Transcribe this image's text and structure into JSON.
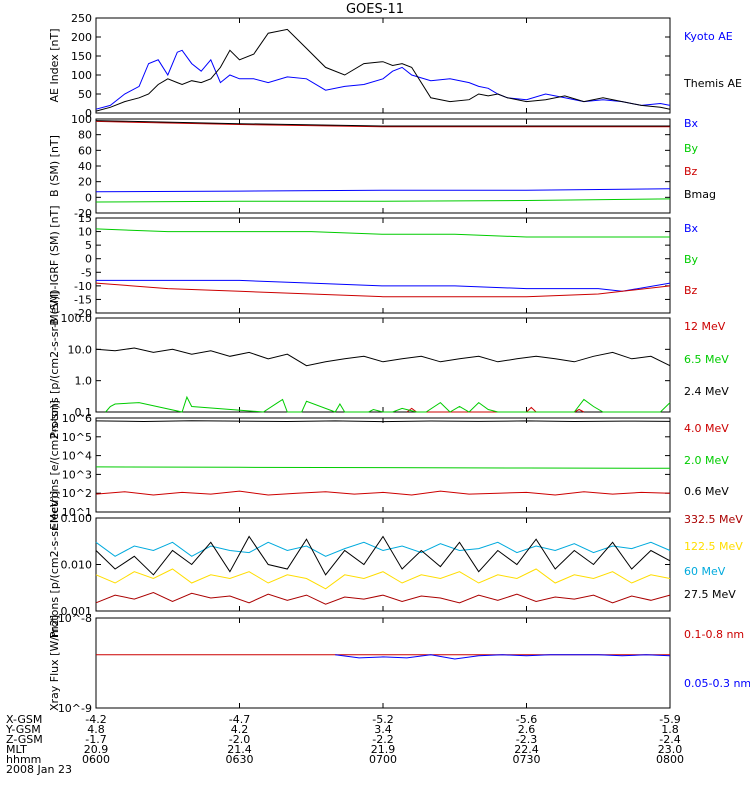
{
  "title": "GOES-11",
  "colors": {
    "black": "#000000",
    "blue": "#0000ff",
    "green": "#00cc00",
    "red": "#cc0000",
    "darkred": "#aa0000",
    "yellow": "#ffdd00",
    "cyan": "#00aadd"
  },
  "chart_data": [
    {
      "type": "line",
      "ylabel": "AE Index [nT]",
      "ylim": [
        0,
        250
      ],
      "yscale": "linear",
      "yticks": [
        "0",
        "50",
        "100",
        "150",
        "200",
        "250"
      ],
      "legend": [
        "Kyoto AE",
        "Themis AE"
      ],
      "series": [
        {
          "name": "Kyoto AE",
          "color": "blue",
          "x": [
            0,
            3,
            6,
            9,
            11,
            13,
            15,
            17,
            18,
            20,
            22,
            24,
            26,
            28,
            30,
            33,
            36,
            40,
            44,
            48,
            52,
            56,
            60,
            62,
            64,
            66,
            70,
            74,
            78,
            80,
            82,
            84,
            86,
            90,
            94,
            98,
            102,
            106,
            110,
            114,
            118,
            120
          ],
          "values": [
            10,
            20,
            50,
            70,
            130,
            140,
            100,
            160,
            165,
            130,
            110,
            140,
            80,
            100,
            90,
            90,
            80,
            95,
            90,
            60,
            70,
            75,
            90,
            110,
            120,
            100,
            85,
            90,
            80,
            70,
            65,
            50,
            40,
            35,
            50,
            40,
            30,
            35,
            30,
            20,
            25,
            20
          ]
        },
        {
          "name": "Themis AE",
          "color": "black",
          "x": [
            0,
            3,
            6,
            9,
            11,
            13,
            15,
            17,
            18,
            20,
            22,
            24,
            26,
            28,
            30,
            33,
            36,
            40,
            44,
            48,
            52,
            56,
            60,
            62,
            64,
            66,
            70,
            74,
            78,
            80,
            82,
            84,
            86,
            90,
            94,
            98,
            102,
            106,
            110,
            114,
            118,
            120
          ],
          "values": [
            5,
            15,
            30,
            40,
            50,
            75,
            90,
            80,
            75,
            85,
            80,
            90,
            120,
            165,
            140,
            155,
            210,
            220,
            170,
            120,
            100,
            130,
            135,
            125,
            130,
            120,
            40,
            30,
            35,
            50,
            45,
            50,
            40,
            30,
            35,
            45,
            30,
            40,
            30,
            20,
            15,
            10
          ]
        }
      ]
    },
    {
      "type": "line",
      "ylabel": "B (SM) [nT]",
      "ylim": [
        -20,
        100
      ],
      "yscale": "linear",
      "yticks": [
        "-20",
        "0",
        "20",
        "40",
        "60",
        "80",
        "100"
      ],
      "legend": [
        "Bx",
        "By",
        "Bz",
        "Bmag"
      ],
      "series": [
        {
          "name": "Bx",
          "color": "blue",
          "x": [
            0,
            30,
            60,
            90,
            120
          ],
          "values": [
            7,
            8,
            9,
            9,
            11
          ]
        },
        {
          "name": "By",
          "color": "green",
          "x": [
            0,
            30,
            60,
            90,
            120
          ],
          "values": [
            -6,
            -5,
            -5,
            -4,
            -2
          ]
        },
        {
          "name": "Bz",
          "color": "red",
          "x": [
            0,
            30,
            60,
            90,
            120
          ],
          "values": [
            97,
            93,
            90,
            90,
            90
          ]
        },
        {
          "name": "Bmag",
          "color": "black",
          "x": [
            0,
            30,
            60,
            90,
            120
          ],
          "values": [
            98,
            94,
            91,
            91,
            91
          ]
        }
      ]
    },
    {
      "type": "line",
      "ylabel": "B (SM)-IGRF (SM) [nT]",
      "ylim": [
        -20,
        15
      ],
      "yscale": "linear",
      "yticks": [
        "-20",
        "-15",
        "-10",
        "-5",
        "0",
        "5",
        "10",
        "15"
      ],
      "legend": [
        "Bx",
        "By",
        "Bz"
      ],
      "series": [
        {
          "name": "Bx",
          "color": "blue",
          "x": [
            0,
            15,
            30,
            45,
            60,
            75,
            90,
            105,
            110,
            120
          ],
          "values": [
            -8,
            -8,
            -8,
            -9,
            -10,
            -10,
            -11,
            -11,
            -12,
            -9
          ]
        },
        {
          "name": "By",
          "color": "green",
          "x": [
            0,
            15,
            30,
            45,
            60,
            75,
            90,
            105,
            120
          ],
          "values": [
            11,
            10,
            10,
            10,
            9,
            9,
            8,
            8,
            8
          ]
        },
        {
          "name": "Bz",
          "color": "red",
          "x": [
            0,
            15,
            30,
            45,
            60,
            75,
            90,
            105,
            110,
            120
          ],
          "values": [
            -9,
            -11,
            -12,
            -13,
            -14,
            -14,
            -14,
            -13,
            -12,
            -10
          ]
        }
      ]
    },
    {
      "type": "line",
      "ylabel": "Protons [p/(cm2-s-sr-MeV)]",
      "ylim": [
        0.1,
        100
      ],
      "yscale": "log",
      "yticks": [
        "0.1",
        "1.0",
        "10.0",
        "100.0"
      ],
      "legend": [
        "12 MeV",
        "6.5 MeV",
        "2.4 MeV"
      ],
      "series": [
        {
          "name": "12 MeV",
          "color": "red",
          "x": [
            65,
            66,
            67,
            90,
            91,
            92,
            100,
            101,
            102
          ],
          "values": [
            0.1,
            0.13,
            0.1,
            0.1,
            0.14,
            0.1,
            0.1,
            0.12,
            0.1
          ]
        },
        {
          "name": "6.5 MeV",
          "color": "green",
          "x": [
            2,
            3,
            4,
            9,
            18,
            19,
            20,
            35,
            38,
            39,
            40,
            43,
            44,
            50,
            51,
            52,
            57,
            58,
            60,
            62,
            64,
            67,
            69,
            72,
            74,
            76,
            78,
            80,
            82,
            84,
            86,
            100,
            102,
            104,
            106,
            118,
            120
          ],
          "values": [
            0.1,
            0.15,
            0.18,
            0.2,
            0.1,
            0.3,
            0.15,
            0.1,
            0.2,
            0.25,
            0.1,
            0.1,
            0.22,
            0.1,
            0.18,
            0.1,
            0.1,
            0.12,
            0.1,
            0.1,
            0.13,
            0.1,
            0.1,
            0.2,
            0.1,
            0.15,
            0.1,
            0.2,
            0.12,
            0.1,
            0.1,
            0.1,
            0.25,
            0.15,
            0.1,
            0.1,
            0.2
          ]
        },
        {
          "name": "2.4 MeV",
          "color": "black",
          "x": [
            0,
            4,
            8,
            12,
            16,
            20,
            24,
            28,
            32,
            36,
            40,
            44,
            48,
            52,
            56,
            60,
            64,
            68,
            72,
            76,
            80,
            84,
            88,
            92,
            96,
            100,
            104,
            108,
            112,
            116,
            120
          ],
          "values": [
            10,
            9,
            11,
            8,
            10,
            7,
            9,
            6,
            8,
            5,
            7,
            3,
            4,
            5,
            6,
            4,
            5,
            6,
            4,
            5,
            6,
            4,
            5,
            6,
            5,
            4,
            6,
            8,
            5,
            6,
            3
          ]
        }
      ]
    },
    {
      "type": "line",
      "ylabel": "Electrons [e/(cm2-s-sr)]",
      "ylim": [
        10,
        1000000
      ],
      "yscale": "log",
      "yticks": [
        "10^1",
        "10^2",
        "10^3",
        "10^4",
        "10^5",
        "10^6"
      ],
      "legend": [
        "4.0 MeV",
        "2.0 MeV",
        "0.6 MeV"
      ],
      "series": [
        {
          "name": "4.0 MeV",
          "color": "red",
          "x": [
            0,
            6,
            12,
            18,
            24,
            30,
            36,
            42,
            48,
            54,
            60,
            66,
            72,
            78,
            84,
            90,
            96,
            102,
            108,
            114,
            120
          ],
          "values": [
            90,
            120,
            80,
            110,
            90,
            130,
            80,
            100,
            120,
            90,
            110,
            80,
            130,
            90,
            100,
            110,
            80,
            120,
            90,
            110,
            100
          ]
        },
        {
          "name": "2.0 MeV",
          "color": "green",
          "x": [
            0,
            30,
            60,
            90,
            120
          ],
          "values": [
            2500,
            2400,
            2300,
            2200,
            2100
          ]
        },
        {
          "name": "0.6 MeV",
          "color": "black",
          "x": [
            0,
            10,
            20,
            30,
            40,
            50,
            60,
            70,
            80,
            90,
            100,
            110,
            120
          ],
          "values": [
            700000,
            650000,
            720000,
            680000,
            650000,
            700000,
            640000,
            690000,
            660000,
            700000,
            650000,
            680000,
            660000
          ]
        }
      ]
    },
    {
      "type": "line",
      "ylabel": "Protons [p/(cm2-s-sr-MeV)]",
      "ylim": [
        0.001,
        0.1
      ],
      "yscale": "log",
      "yticks": [
        "0.001",
        "0.010",
        "0.100"
      ],
      "legend": [
        "332.5 MeV",
        "122.5 MeV",
        "60 MeV",
        "27.5 MeV"
      ],
      "series": [
        {
          "name": "332.5 MeV",
          "color": "darkred",
          "x": [
            0,
            4,
            8,
            12,
            16,
            20,
            24,
            28,
            32,
            36,
            40,
            44,
            48,
            52,
            56,
            60,
            64,
            68,
            72,
            76,
            80,
            84,
            88,
            92,
            96,
            100,
            104,
            108,
            112,
            116,
            120
          ],
          "values": [
            0.0015,
            0.0022,
            0.0018,
            0.0025,
            0.0016,
            0.0024,
            0.0019,
            0.0021,
            0.0015,
            0.0023,
            0.0017,
            0.0022,
            0.0014,
            0.002,
            0.0018,
            0.0022,
            0.0016,
            0.0021,
            0.0019,
            0.0015,
            0.0022,
            0.0017,
            0.0023,
            0.0016,
            0.002,
            0.0018,
            0.0022,
            0.0015,
            0.0021,
            0.0017,
            0.0022
          ]
        },
        {
          "name": "122.5 MeV",
          "color": "yellow",
          "x": [
            0,
            4,
            8,
            12,
            16,
            20,
            24,
            28,
            32,
            36,
            40,
            44,
            48,
            52,
            56,
            60,
            64,
            68,
            72,
            76,
            80,
            84,
            88,
            92,
            96,
            100,
            104,
            108,
            112,
            116,
            120
          ],
          "values": [
            0.006,
            0.004,
            0.007,
            0.005,
            0.008,
            0.004,
            0.006,
            0.005,
            0.007,
            0.004,
            0.006,
            0.005,
            0.003,
            0.006,
            0.005,
            0.007,
            0.004,
            0.006,
            0.005,
            0.007,
            0.004,
            0.006,
            0.005,
            0.008,
            0.004,
            0.006,
            0.005,
            0.007,
            0.004,
            0.006,
            0.005
          ]
        },
        {
          "name": "60 MeV",
          "color": "cyan",
          "x": [
            0,
            4,
            8,
            12,
            16,
            20,
            24,
            28,
            32,
            36,
            40,
            44,
            48,
            52,
            56,
            60,
            64,
            68,
            72,
            76,
            80,
            84,
            88,
            92,
            96,
            100,
            104,
            108,
            112,
            116,
            120
          ],
          "values": [
            0.03,
            0.015,
            0.025,
            0.02,
            0.03,
            0.015,
            0.025,
            0.02,
            0.018,
            0.03,
            0.02,
            0.025,
            0.015,
            0.022,
            0.03,
            0.02,
            0.025,
            0.018,
            0.028,
            0.02,
            0.022,
            0.03,
            0.018,
            0.025,
            0.02,
            0.028,
            0.018,
            0.025,
            0.022,
            0.03,
            0.02
          ]
        },
        {
          "name": "27.5 MeV",
          "color": "black",
          "x": [
            0,
            4,
            8,
            12,
            16,
            20,
            24,
            28,
            32,
            36,
            40,
            44,
            48,
            52,
            56,
            60,
            64,
            68,
            72,
            76,
            80,
            84,
            88,
            92,
            96,
            100,
            104,
            108,
            112,
            116,
            120
          ],
          "values": [
            0.02,
            0.008,
            0.015,
            0.006,
            0.02,
            0.01,
            0.03,
            0.007,
            0.04,
            0.01,
            0.008,
            0.035,
            0.006,
            0.02,
            0.01,
            0.04,
            0.008,
            0.02,
            0.009,
            0.03,
            0.007,
            0.02,
            0.01,
            0.035,
            0.008,
            0.02,
            0.01,
            0.03,
            0.008,
            0.02,
            0.012
          ]
        }
      ]
    },
    {
      "type": "line",
      "ylabel": "Xray Flux [W/m2]",
      "ylim": [
        1e-09,
        1e-08
      ],
      "yscale": "log",
      "yticks": [
        "10^-9",
        "10^-8"
      ],
      "legend": [
        "0.1-0.8 nm",
        "0.05-0.3 nm"
      ],
      "series": [
        {
          "name": "0.1-0.8 nm",
          "color": "red",
          "x": [
            0,
            30,
            60,
            90,
            120
          ],
          "values": [
            3.9e-09,
            3.9e-09,
            3.9e-09,
            3.9e-09,
            3.9e-09
          ]
        },
        {
          "name": "0.05-0.3 nm",
          "color": "blue",
          "x": [
            50,
            55,
            60,
            65,
            70,
            75,
            80,
            85,
            90,
            95,
            100,
            105,
            110,
            115,
            120
          ],
          "values": [
            3.9e-09,
            3.6e-09,
            3.7e-09,
            3.6e-09,
            3.9e-09,
            3.5e-09,
            3.8e-09,
            3.9e-09,
            3.8e-09,
            3.9e-09,
            3.9e-09,
            3.9e-09,
            3.8e-09,
            3.9e-09,
            3.8e-09
          ]
        }
      ]
    }
  ],
  "xaxis": {
    "row_labels": [
      "X-GSM",
      "Y-GSM",
      "Z-GSM",
      "MLT",
      "hhmm",
      "2008 Jan 23"
    ],
    "ticks": [
      {
        "minute": 0,
        "values": [
          "-4.2",
          "4.8",
          "-1.7",
          "20.9",
          "0600"
        ]
      },
      {
        "minute": 30,
        "values": [
          "-4.7",
          "4.2",
          "-2.0",
          "21.4",
          "0630"
        ]
      },
      {
        "minute": 60,
        "values": [
          "-5.2",
          "3.4",
          "-2.2",
          "21.9",
          "0700"
        ]
      },
      {
        "minute": 90,
        "values": [
          "-5.6",
          "2.6",
          "-2.3",
          "22.4",
          "0730"
        ]
      },
      {
        "minute": 120,
        "values": [
          "-5.9",
          "1.8",
          "-2.4",
          "23.0",
          "0800"
        ]
      }
    ]
  }
}
